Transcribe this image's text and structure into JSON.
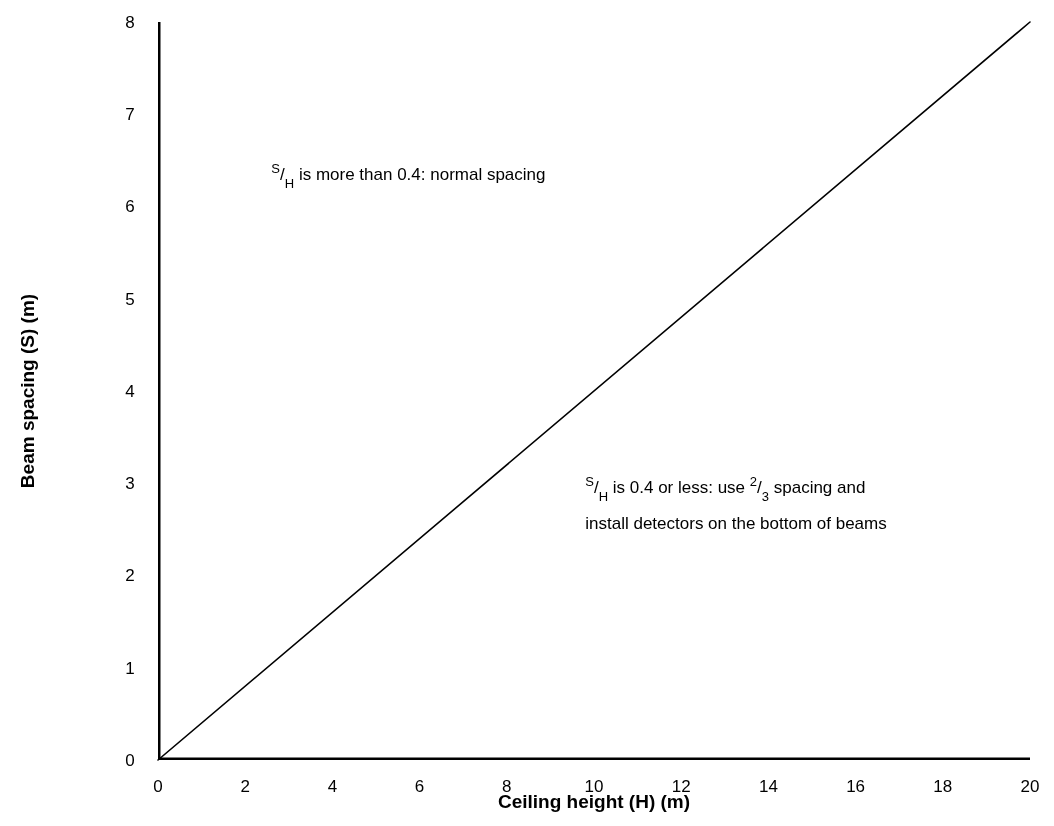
{
  "chart_data": {
    "type": "line",
    "xlabel": "Ceiling height (H) (m)",
    "ylabel": "Beam spacing (S) (m)",
    "series": [
      {
        "x": [
          0,
          20
        ],
        "values": [
          0,
          8
        ],
        "color": "#000000"
      }
    ],
    "xlim": [
      0,
      20
    ],
    "xticks": [
      0,
      2,
      4,
      6,
      8,
      10,
      12,
      14,
      16,
      18,
      20
    ],
    "ylim": [
      0,
      8
    ],
    "yticks": [
      0,
      1,
      2,
      3,
      4,
      5,
      6,
      7,
      8
    ],
    "grid": false,
    "line_style": "solid",
    "annotations": [
      "$^{S}$/$_{H}$ is more than 0.4: normal spacing",
      "$^{S}$/$_{H}$ is 0.4 or less: use $^{2}$/$_{3}$ spacing and\ninstall detectors on the bottom of beams"
    ]
  }
}
